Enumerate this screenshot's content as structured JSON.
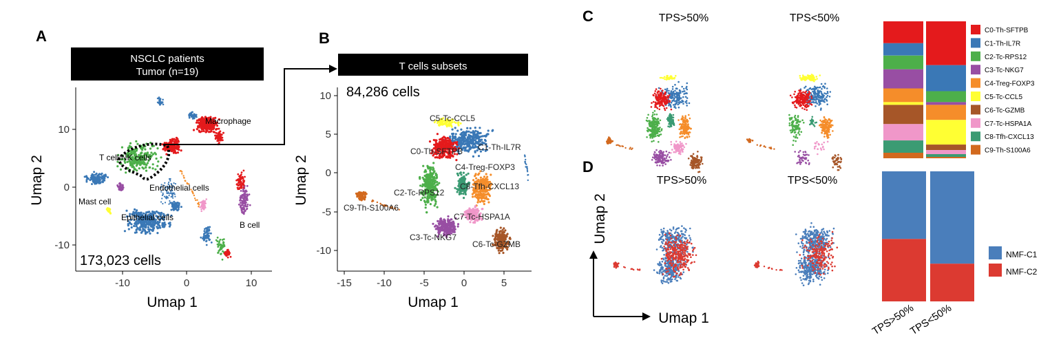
{
  "panel_letters": {
    "a": "A",
    "b": "B",
    "c": "C",
    "d": "D"
  },
  "colors": {
    "c0": "#e41a1c",
    "c1": "#3a78b6",
    "c2": "#4daf4a",
    "c3": "#984ea3",
    "c4": "#f58d2a",
    "c5": "#ffff33",
    "c6": "#a65628",
    "c7": "#f097c9",
    "c8": "#3b9b73",
    "c9": "#d2691e",
    "grey": "#9a9a9a",
    "nmf1": "#4a7ebb",
    "nmf2": "#dc3a31"
  },
  "panelA": {
    "header_line1": "NSCLC patients",
    "header_line2": "Tumor (n=19)",
    "cell_count": "173,023 cells",
    "labels": {
      "macrophage": "Macrophage",
      "t_nk": "T cell/NK cells",
      "endothelial": "Endothelial cells",
      "mast": "Mast cell",
      "epithelial": "Epithelial cells",
      "bcell": "B cell"
    },
    "x_ticks": [
      "-10",
      "0",
      "10"
    ],
    "y_ticks": [
      "10",
      "0",
      "-10"
    ],
    "xlabel": "Umap 1",
    "ylabel": "Umap 2"
  },
  "panelB": {
    "header": "T cells subsets",
    "cell_count": "84,286 cells",
    "labels": {
      "c5": "C5-Tc-CCL5",
      "c0": "C0-Th-SFTPB",
      "c1": "C1-Th-IL7R",
      "c4": "C4-Treg-FOXP3",
      "c8": "C8-Tfh-CXCL13",
      "c2": "C2-Tc-RPS12",
      "c9": "C9-Th-S100A6",
      "c7": "C7-Tc-HSPA1A",
      "c3": "C3-Tc-NKG7",
      "c6": "C6-Tc-GZMB"
    },
    "x_ticks": [
      "-15",
      "-10",
      "-5",
      "0",
      "5"
    ],
    "y_ticks": [
      "10",
      "5",
      "0",
      "-5",
      "-10"
    ],
    "xlabel": "Umap 1",
    "ylabel": "Umap 2"
  },
  "panelC": {
    "title_left": "TPS>50%",
    "title_right": "TPS<50%",
    "legend": [
      "C0-Th-SFTPB",
      "C1-Th-IL7R",
      "C2-Tc-RPS12",
      "C3-Tc-NKG7",
      "C4-Treg-FOXP3",
      "C5-Tc-CCL5",
      "C6-Tc-GZMB",
      "C7-Tc-HSPA1A",
      "C8-Tfh-CXCL13",
      "C9-Th-S100A6"
    ]
  },
  "panelD": {
    "title_left": "TPS>50%",
    "title_right": "TPS<50%",
    "legend": [
      "NMF-C1",
      "NMF-C2"
    ],
    "bar_labels": [
      "TPS>50%",
      "TPS<50%"
    ],
    "xlabel": "Umap 1",
    "ylabel": "Umap 2"
  },
  "chart_data": [
    {
      "type": "bar",
      "stacked": true,
      "normalized": true,
      "categories": [
        "TPS>50%",
        "TPS<50%"
      ],
      "series": [
        {
          "name": "C0-Th-SFTPB",
          "values": [
            0.16,
            0.32
          ]
        },
        {
          "name": "C1-Th-IL7R",
          "values": [
            0.09,
            0.19
          ]
        },
        {
          "name": "C2-Tc-RPS12",
          "values": [
            0.1,
            0.08
          ]
        },
        {
          "name": "C3-Tc-NKG7",
          "values": [
            0.14,
            0.02
          ]
        },
        {
          "name": "C4-Treg-FOXP3",
          "values": [
            0.1,
            0.11
          ]
        },
        {
          "name": "C5-Tc-CCL5",
          "values": [
            0.02,
            0.18
          ]
        },
        {
          "name": "C6-Tc-GZMB",
          "values": [
            0.14,
            0.04
          ]
        },
        {
          "name": "C7-Tc-HSPA1A",
          "values": [
            0.12,
            0.03
          ]
        },
        {
          "name": "C8-Tfh-CXCL13",
          "values": [
            0.09,
            0.02
          ]
        },
        {
          "name": "C9-Th-S100A6",
          "values": [
            0.04,
            0.01
          ]
        }
      ]
    },
    {
      "type": "bar",
      "stacked": true,
      "normalized": true,
      "categories": [
        "TPS>50%",
        "TPS<50%"
      ],
      "series": [
        {
          "name": "NMF-C1",
          "values": [
            0.52,
            0.71
          ]
        },
        {
          "name": "NMF-C2",
          "values": [
            0.48,
            0.29
          ]
        }
      ]
    }
  ]
}
